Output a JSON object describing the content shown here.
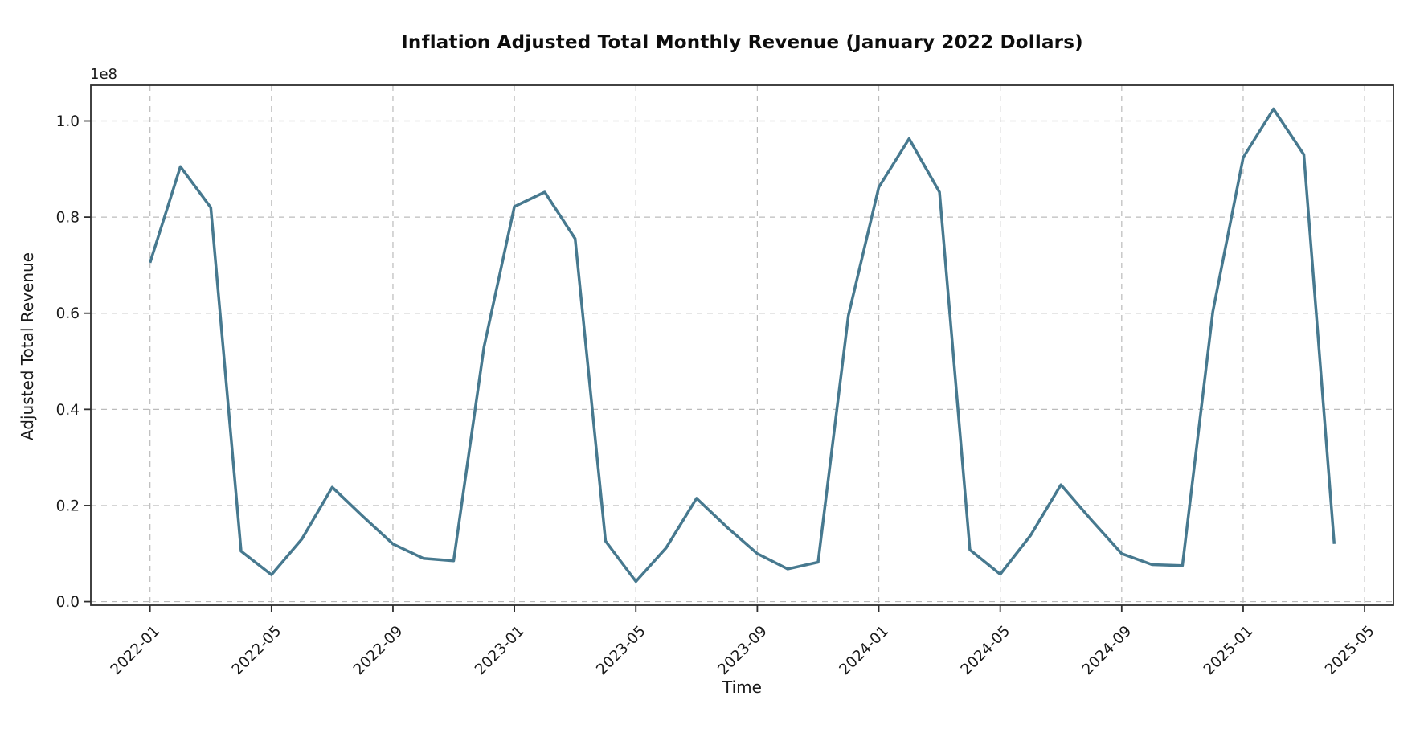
{
  "figure": {
    "title": "Inflation Adjusted Total Monthly Revenue (January 2022 Dollars)",
    "x_axis_label": "Time",
    "y_axis_label": "Adjusted Total Revenue",
    "y_offset_label": "1e8"
  },
  "chart_data": {
    "type": "line",
    "title": "Inflation Adjusted Total Monthly Revenue (January 2022 Dollars)",
    "xlabel": "Time",
    "ylabel": "Adjusted Total Revenue",
    "y_unit": "1e8 dollars (values below are in units of 1e8)",
    "x": [
      "2022-01",
      "2022-02",
      "2022-03",
      "2022-04",
      "2022-05",
      "2022-06",
      "2022-07",
      "2022-08",
      "2022-09",
      "2022-10",
      "2022-11",
      "2022-12",
      "2023-01",
      "2023-02",
      "2023-03",
      "2023-04",
      "2023-05",
      "2023-06",
      "2023-07",
      "2023-08",
      "2023-09",
      "2023-10",
      "2023-11",
      "2023-12",
      "2024-01",
      "2024-02",
      "2024-03",
      "2024-04",
      "2024-05",
      "2024-06",
      "2024-07",
      "2024-08",
      "2024-09",
      "2024-10",
      "2024-11",
      "2024-12",
      "2025-01",
      "2025-02",
      "2025-03",
      "2025-04"
    ],
    "values": [
      0.705,
      0.905,
      0.82,
      0.105,
      0.056,
      0.13,
      0.238,
      0.178,
      0.12,
      0.09,
      0.085,
      0.53,
      0.822,
      0.852,
      0.755,
      0.126,
      0.042,
      0.112,
      0.215,
      0.155,
      0.1,
      0.068,
      0.082,
      0.595,
      0.862,
      0.963,
      0.852,
      0.108,
      0.057,
      0.138,
      0.243,
      0.17,
      0.1,
      0.077,
      0.075,
      0.603,
      0.924,
      1.025,
      0.93,
      0.12
    ],
    "x_tick_labels": [
      "2022-01",
      "2022-05",
      "2022-09",
      "2023-01",
      "2023-05",
      "2023-09",
      "2024-01",
      "2024-05",
      "2024-09",
      "2025-01",
      "2025-05"
    ],
    "y_tick_labels": [
      "0.0",
      "0.2",
      "0.4",
      "0.6",
      "0.8",
      "1.0"
    ],
    "xlim_months": [
      -1.95,
      40.95
    ],
    "ylim": [
      -0.0074,
      1.0744
    ],
    "grid": true,
    "grid_style": "dashed",
    "legend": "none",
    "line_color": "#47798f",
    "grid_color": "#bcbcbc",
    "spine_color": "#2e2e2e",
    "tick_text_color": "#1a1a1a",
    "background_color": "#ffffff"
  }
}
